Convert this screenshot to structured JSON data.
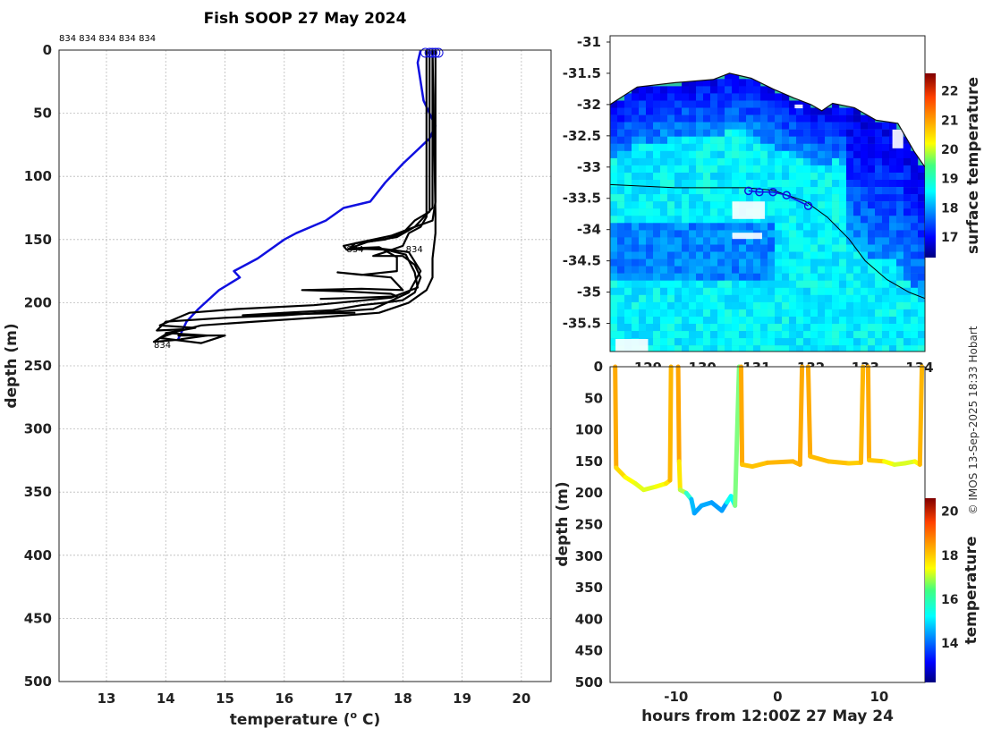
{
  "chart_data": [
    {
      "type": "line",
      "title": "Fish SOOP 27 May 2024",
      "xlabel": "temperature (",
      "xlabel_sup": "o",
      "xlabel_tail": " C)",
      "ylabel": "depth (m)",
      "xlim": [
        12.2,
        20.5
      ],
      "ylim": [
        0,
        500
      ],
      "xticks": [
        13,
        14,
        15,
        16,
        17,
        18,
        19,
        20
      ],
      "yticks": [
        0,
        50,
        100,
        150,
        200,
        250,
        300,
        350,
        400,
        450,
        500
      ],
      "top_annotation": "834 834 834 834 834",
      "point_labels": [
        {
          "text": "834",
          "x": 13.8,
          "y": 236
        },
        {
          "text": "834",
          "x": 17.05,
          "y": 160
        },
        {
          "text": "834",
          "x": 18.05,
          "y": 160
        }
      ],
      "series": [
        {
          "name": "climatology",
          "color": "#1010e0",
          "points": [
            [
              18.3,
              0
            ],
            [
              18.25,
              10
            ],
            [
              18.35,
              40
            ],
            [
              18.55,
              60
            ],
            [
              18.45,
              70
            ],
            [
              18.0,
              90
            ],
            [
              17.7,
              105
            ],
            [
              17.45,
              120
            ],
            [
              17.0,
              125
            ],
            [
              16.7,
              135
            ],
            [
              16.2,
              145
            ],
            [
              16.0,
              150
            ],
            [
              15.55,
              165
            ],
            [
              15.15,
              175
            ],
            [
              15.25,
              180
            ],
            [
              14.9,
              190
            ],
            [
              14.55,
              205
            ],
            [
              14.35,
              215
            ],
            [
              14.2,
              230
            ]
          ]
        },
        {
          "name": "profile-1",
          "color": "#000000",
          "points": [
            [
              18.55,
              0
            ],
            [
              18.55,
              120
            ],
            [
              18.5,
              135
            ],
            [
              18.2,
              140
            ],
            [
              17.8,
              147
            ],
            [
              17.5,
              150
            ],
            [
              17.3,
              152
            ],
            [
              17.0,
              155
            ],
            [
              17.05,
              158
            ],
            [
              17.6,
              157
            ],
            [
              18.1,
              160
            ],
            [
              18.3,
              175
            ],
            [
              18.1,
              192
            ],
            [
              17.5,
              205
            ],
            [
              16.0,
              210
            ],
            [
              15.0,
              212
            ],
            [
              14.0,
              215
            ],
            [
              13.85,
              222
            ],
            [
              14.3,
              221
            ],
            [
              13.9,
              228
            ],
            [
              14.6,
              232
            ],
            [
              15.0,
              226
            ],
            [
              14.2,
              226
            ]
          ]
        },
        {
          "name": "profile-2",
          "color": "#000000",
          "points": [
            [
              18.5,
              0
            ],
            [
              18.5,
              125
            ],
            [
              18.2,
              140
            ],
            [
              17.9,
              148
            ],
            [
              17.4,
              152
            ],
            [
              17.1,
              157
            ],
            [
              17.7,
              158
            ],
            [
              18.05,
              162
            ],
            [
              18.2,
              176
            ],
            [
              18.25,
              188
            ],
            [
              17.8,
              196
            ],
            [
              16.5,
              202
            ],
            [
              15.2,
              205
            ],
            [
              14.4,
              208
            ],
            [
              13.9,
              218
            ],
            [
              14.5,
              220
            ],
            [
              14.0,
              224
            ],
            [
              14.7,
              226
            ],
            [
              14.25,
              229
            ]
          ]
        },
        {
          "name": "profile-3",
          "color": "#000000",
          "points": [
            [
              18.45,
              0
            ],
            [
              18.45,
              128
            ],
            [
              18.2,
              135
            ],
            [
              18.0,
              145
            ],
            [
              17.7,
              150
            ],
            [
              17.2,
              153
            ],
            [
              17.1,
              157
            ],
            [
              17.6,
              156
            ],
            [
              17.9,
              164
            ],
            [
              17.9,
              175
            ],
            [
              17.3,
              178
            ],
            [
              16.9,
              176
            ],
            [
              17.8,
              180
            ],
            [
              18.0,
              190
            ],
            [
              17.3,
              189
            ],
            [
              16.3,
              190
            ],
            [
              17.0,
              191
            ],
            [
              17.8,
              193
            ],
            [
              17.9,
              195
            ],
            [
              17.3,
              196
            ],
            [
              16.6,
              197
            ]
          ]
        },
        {
          "name": "profile-4",
          "color": "#000000",
          "points": [
            [
              18.4,
              0
            ],
            [
              18.4,
              132
            ],
            [
              18.3,
              140
            ],
            [
              18.1,
              145
            ],
            [
              18.0,
              155
            ],
            [
              17.7,
              160
            ],
            [
              17.5,
              163
            ],
            [
              18.0,
              163
            ],
            [
              18.2,
              170
            ],
            [
              18.3,
              180
            ],
            [
              18.2,
              192
            ],
            [
              18.0,
              198
            ],
            [
              17.7,
              200
            ],
            [
              17.3,
              202
            ],
            [
              16.8,
              206
            ],
            [
              16.0,
              208
            ],
            [
              15.3,
              210
            ],
            [
              16.2,
              209
            ],
            [
              17.2,
              208
            ]
          ]
        },
        {
          "name": "profile-5",
          "color": "#000000",
          "points": [
            [
              18.5,
              0
            ],
            [
              18.55,
              130
            ],
            [
              18.55,
              145
            ],
            [
              18.5,
              165
            ],
            [
              18.5,
              180
            ],
            [
              18.4,
              190
            ],
            [
              18.1,
              200
            ],
            [
              17.6,
              208
            ],
            [
              16.5,
              212
            ],
            [
              15.5,
              215
            ],
            [
              14.6,
              218
            ],
            [
              14.0,
              225
            ],
            [
              13.8,
              231
            ],
            [
              14.3,
              229
            ]
          ]
        }
      ],
      "surface_markers": [
        18.38,
        18.45,
        18.5,
        18.55,
        18.6
      ]
    },
    {
      "type": "heatmap",
      "title": "",
      "xlabel": "",
      "ylabel": "",
      "xlim": [
        128.3,
        134.1
      ],
      "ylim": [
        -35.95,
        -30.9
      ],
      "xticks": [
        129,
        130,
        131,
        132,
        133,
        134
      ],
      "xtick_labels": [
        "129",
        "130",
        "131",
        "132",
        "133",
        "134"
      ],
      "yticks": [
        -31,
        -31.5,
        -32,
        -32.5,
        -33,
        -33.5,
        -34,
        -34.5,
        -35,
        -35.5
      ],
      "colorbar_label": "surface temperature",
      "colorbar_range": [
        16.3,
        22.6
      ],
      "colorbar_ticks": [
        17,
        18,
        19,
        20,
        21,
        22
      ],
      "track": [
        [
          128.3,
          -33.28
        ],
        [
          129.5,
          -33.33
        ],
        [
          130.8,
          -33.33
        ],
        [
          131.3,
          -33.37
        ],
        [
          131.9,
          -33.55
        ],
        [
          132.3,
          -33.8
        ],
        [
          132.7,
          -34.15
        ],
        [
          133.0,
          -34.5
        ],
        [
          133.4,
          -34.8
        ],
        [
          133.8,
          -35.0
        ],
        [
          134.1,
          -35.1
        ]
      ],
      "coast": [
        [
          128.3,
          -32.0
        ],
        [
          128.8,
          -31.72
        ],
        [
          129.5,
          -31.65
        ],
        [
          130.2,
          -31.6
        ],
        [
          130.5,
          -31.5
        ],
        [
          130.9,
          -31.58
        ],
        [
          131.3,
          -31.75
        ],
        [
          131.7,
          -31.9
        ],
        [
          132.0,
          -32.0
        ],
        [
          132.2,
          -32.1
        ],
        [
          132.4,
          -31.98
        ],
        [
          132.8,
          -32.05
        ],
        [
          133.2,
          -32.25
        ],
        [
          133.6,
          -32.3
        ],
        [
          133.9,
          -32.75
        ],
        [
          134.1,
          -33.0
        ]
      ],
      "deployment_markers": [
        [
          130.85,
          -33.38
        ],
        [
          131.05,
          -33.4
        ],
        [
          131.3,
          -33.4
        ],
        [
          131.55,
          -33.45
        ],
        [
          131.95,
          -33.62
        ]
      ]
    },
    {
      "type": "line",
      "title": "",
      "xlabel": "hours from 12:00Z 27 May 24",
      "ylabel": "depth (m)",
      "xlim": [
        -16.5,
        14.5
      ],
      "ylim": [
        0,
        500
      ],
      "xticks": [
        -10,
        0,
        10
      ],
      "yticks": [
        0,
        50,
        100,
        150,
        200,
        250,
        300,
        350,
        400,
        450,
        500
      ],
      "colorbar_label": "temperature",
      "colorbar_range": [
        12.2,
        20.6
      ],
      "colorbar_ticks": [
        14,
        16,
        18,
        20
      ],
      "series": [
        {
          "name": "dive-1",
          "points": [
            [
              -16.0,
              0,
              18.3
            ],
            [
              -15.9,
              160,
              18.0
            ],
            [
              -15.0,
              175,
              17.5
            ],
            [
              -14.0,
              185,
              17.4
            ],
            [
              -13.2,
              195,
              17.1
            ],
            [
              -12.0,
              190,
              17.3
            ],
            [
              -11.0,
              185,
              17.5
            ],
            [
              -10.6,
              180,
              17.8
            ],
            [
              -10.5,
              0,
              18.3
            ]
          ]
        },
        {
          "name": "dive-2",
          "points": [
            [
              -9.8,
              0,
              18.3
            ],
            [
              -9.7,
              150,
              18.1
            ],
            [
              -9.6,
              195,
              17.2
            ],
            [
              -9.0,
              200,
              16.5
            ],
            [
              -8.5,
              210,
              15.0
            ],
            [
              -8.2,
              232,
              14.6
            ],
            [
              -7.5,
              220,
              14.6
            ],
            [
              -6.5,
              215,
              14.7
            ],
            [
              -5.5,
              228,
              14.4
            ],
            [
              -5.0,
              215,
              14.7
            ],
            [
              -4.6,
              205,
              16.2
            ],
            [
              -4.2,
              220,
              14.5
            ],
            [
              -3.8,
              0,
              18.3
            ]
          ]
        },
        {
          "name": "dive-3",
          "points": [
            [
              -3.6,
              0,
              18.3
            ],
            [
              -3.5,
              155,
              18.0
            ],
            [
              -2.5,
              158,
              17.9
            ],
            [
              -1.0,
              152,
              18.0
            ],
            [
              1.5,
              150,
              18.1
            ],
            [
              2.2,
              155,
              18.0
            ],
            [
              2.4,
              0,
              18.3
            ]
          ]
        },
        {
          "name": "dive-4",
          "points": [
            [
              3.0,
              0,
              18.3
            ],
            [
              3.2,
              142,
              18.0
            ],
            [
              5.0,
              150,
              18.0
            ],
            [
              7.0,
              153,
              17.9
            ],
            [
              8.2,
              152,
              17.8
            ],
            [
              8.4,
              0,
              18.3
            ]
          ]
        },
        {
          "name": "dive-5",
          "points": [
            [
              8.9,
              0,
              18.3
            ],
            [
              9.0,
              148,
              18.0
            ],
            [
              10.5,
              150,
              17.8
            ],
            [
              11.5,
              155,
              17.0
            ],
            [
              12.5,
              153,
              17.3
            ],
            [
              13.5,
              150,
              17.0
            ],
            [
              14.0,
              155,
              17.8
            ],
            [
              14.2,
              0,
              18.3
            ]
          ]
        }
      ]
    }
  ],
  "credit": "© IMOS 13-Sep-2025 18:33 Hobart"
}
